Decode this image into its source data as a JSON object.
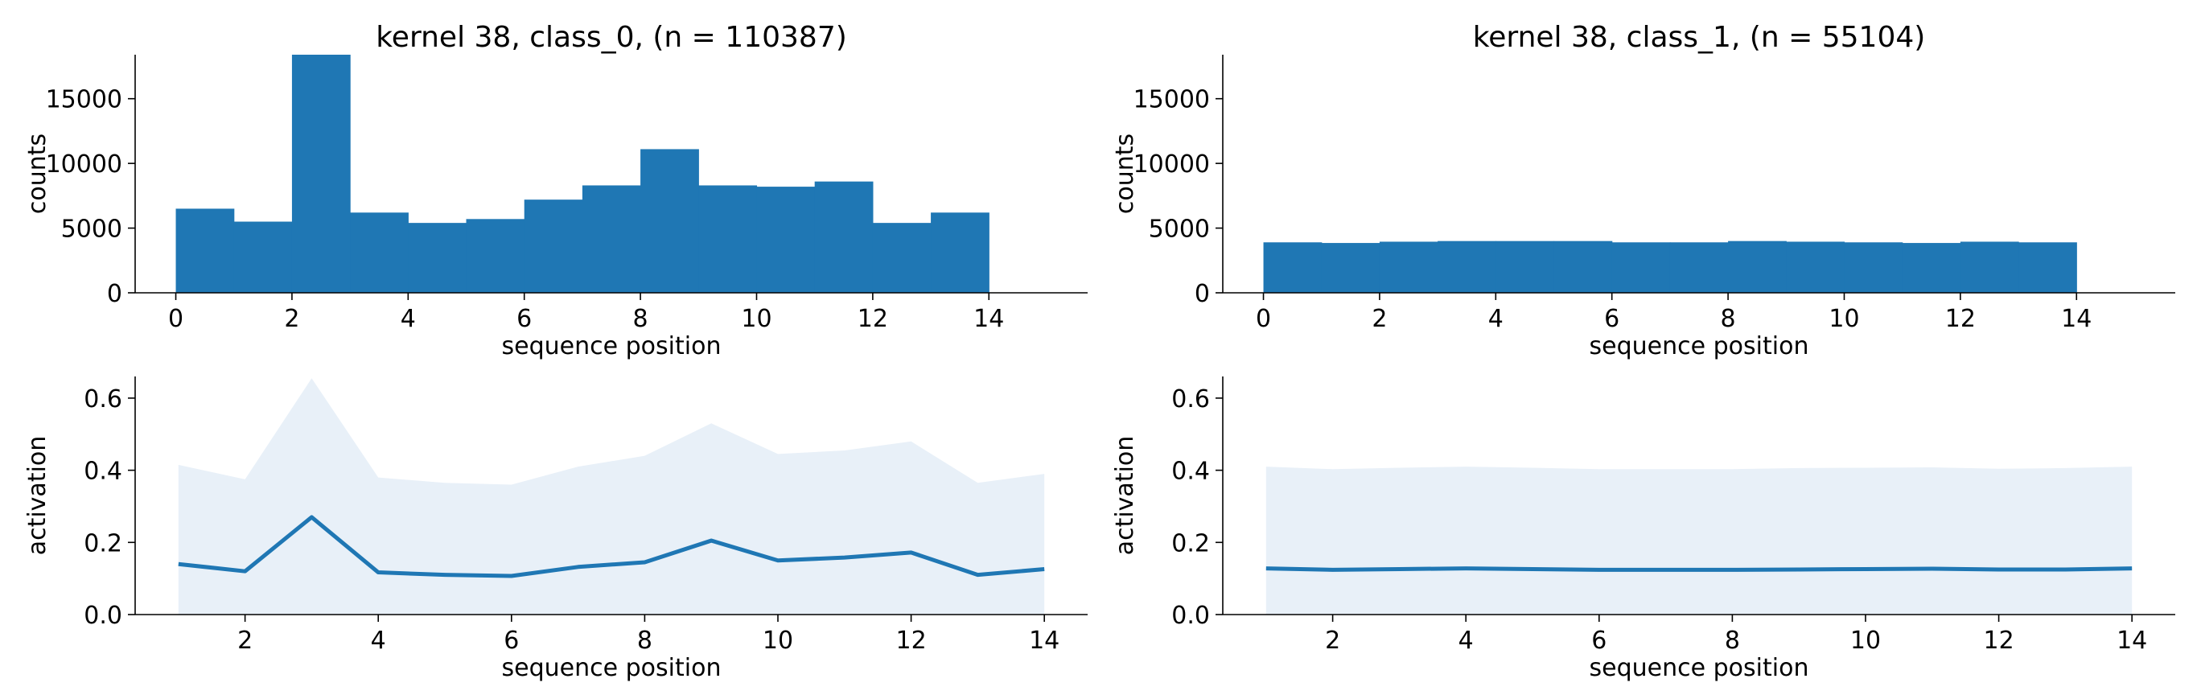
{
  "colors": {
    "bar": "#1f77b4",
    "line": "#1f77b4",
    "band": "#e8f0f8",
    "axis": "#000000"
  },
  "chart_data": [
    {
      "id": "hist-class0",
      "type": "bar",
      "title": "kernel 38, class_0, (n = 110387)",
      "xlabel": "sequence position",
      "ylabel": "counts",
      "xlim": [
        -0.7,
        15.7
      ],
      "ylim": [
        0,
        18400
      ],
      "xticks": [
        0,
        2,
        4,
        6,
        8,
        10,
        12,
        14
      ],
      "yticks": [
        0,
        5000,
        10000,
        15000
      ],
      "bin_edges": [
        0,
        1,
        2,
        3,
        4,
        5,
        6,
        7,
        8,
        9,
        10,
        11,
        12,
        13,
        14
      ],
      "values": [
        6500,
        5500,
        18400,
        6200,
        5400,
        5700,
        7200,
        8300,
        11100,
        8300,
        8200,
        8600,
        5400,
        6200
      ],
      "grid": false,
      "legend": "none"
    },
    {
      "id": "hist-class1",
      "type": "bar",
      "title": "kernel 38, class_1, (n = 55104)",
      "xlabel": "sequence position",
      "ylabel": "counts",
      "xlim": [
        -0.7,
        15.7
      ],
      "ylim": [
        0,
        18400
      ],
      "xticks": [
        0,
        2,
        4,
        6,
        8,
        10,
        12,
        14
      ],
      "yticks": [
        0,
        5000,
        10000,
        15000
      ],
      "bin_edges": [
        0,
        1,
        2,
        3,
        4,
        5,
        6,
        7,
        8,
        9,
        10,
        11,
        12,
        13,
        14
      ],
      "values": [
        3900,
        3850,
        3950,
        4000,
        4000,
        4000,
        3900,
        3900,
        4000,
        3950,
        3900,
        3850,
        3950,
        3900
      ],
      "grid": false,
      "legend": "none"
    },
    {
      "id": "act-class0",
      "type": "area",
      "title": "",
      "xlabel": "sequence position",
      "ylabel": "activation",
      "xlim": [
        0.35,
        14.65
      ],
      "ylim": [
        0,
        0.66
      ],
      "xticks": [
        2,
        4,
        6,
        8,
        10,
        12,
        14
      ],
      "yticks": [
        0.0,
        0.2,
        0.4,
        0.6
      ],
      "x": [
        1,
        2,
        3,
        4,
        5,
        6,
        7,
        8,
        9,
        10,
        11,
        12,
        13,
        14
      ],
      "mean": [
        0.14,
        0.12,
        0.27,
        0.117,
        0.11,
        0.107,
        0.132,
        0.145,
        0.205,
        0.15,
        0.158,
        0.172,
        0.11,
        0.126
      ],
      "upper": [
        0.415,
        0.375,
        0.655,
        0.38,
        0.365,
        0.36,
        0.41,
        0.44,
        0.53,
        0.445,
        0.455,
        0.48,
        0.365,
        0.39
      ],
      "lower": [
        0,
        0,
        0,
        0,
        0,
        0,
        0,
        0,
        0,
        0,
        0,
        0,
        0,
        0
      ],
      "grid": false,
      "legend": "none"
    },
    {
      "id": "act-class1",
      "type": "area",
      "title": "",
      "xlabel": "sequence position",
      "ylabel": "activation",
      "xlim": [
        0.35,
        14.65
      ],
      "ylim": [
        0,
        0.66
      ],
      "xticks": [
        2,
        4,
        6,
        8,
        10,
        12,
        14
      ],
      "yticks": [
        0.0,
        0.2,
        0.4,
        0.6
      ],
      "x": [
        1,
        2,
        3,
        4,
        5,
        6,
        7,
        8,
        9,
        10,
        11,
        12,
        13,
        14
      ],
      "mean": [
        0.128,
        0.124,
        0.126,
        0.128,
        0.126,
        0.124,
        0.124,
        0.124,
        0.125,
        0.126,
        0.127,
        0.125,
        0.125,
        0.128
      ],
      "upper": [
        0.41,
        0.403,
        0.407,
        0.41,
        0.407,
        0.403,
        0.403,
        0.403,
        0.406,
        0.407,
        0.408,
        0.404,
        0.406,
        0.41
      ],
      "lower": [
        0,
        0,
        0,
        0,
        0,
        0,
        0,
        0,
        0,
        0,
        0,
        0,
        0,
        0
      ],
      "grid": false,
      "legend": "none"
    }
  ]
}
